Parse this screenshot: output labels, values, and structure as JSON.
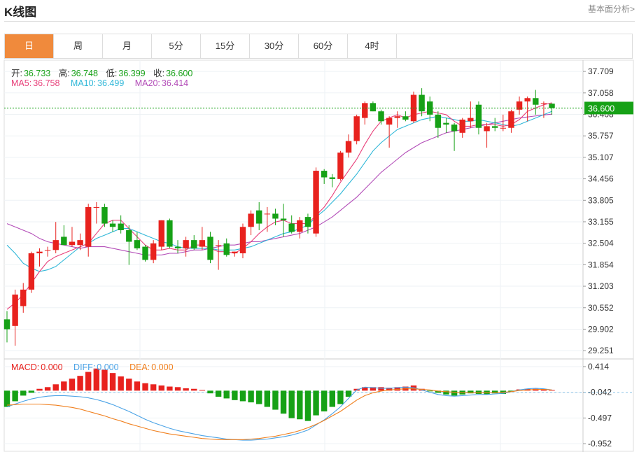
{
  "header": {
    "title": "K线图",
    "link": "基本面分析>"
  },
  "tabs": [
    "日",
    "周",
    "月",
    "5分",
    "15分",
    "30分",
    "60分",
    "4时"
  ],
  "active_tab": 0,
  "ohlc_info": {
    "open_label": "开:",
    "open": "36.733",
    "high_label": "高:",
    "high": "36.748",
    "low_label": "低:",
    "low": "36.399",
    "close_label": "收:",
    "close": "36.600"
  },
  "ma_info": {
    "ma5_label": "MA5:",
    "ma5": "36.758",
    "ma10_label": "MA10:",
    "ma10": "36.499",
    "ma20_label": "MA20:",
    "ma20": "36.414"
  },
  "macd_info": {
    "macd_label": "MACD:",
    "macd": "0.000",
    "diff_label": "DIFF:",
    "diff": "0.000",
    "dea_label": "DEA:",
    "dea": "0.000"
  },
  "colors": {
    "up": "#e8221e",
    "down": "#16a116",
    "ma5": "#e8407a",
    "ma10": "#2fb7d8",
    "ma20": "#b34db8",
    "diff": "#4ba3e6",
    "dea": "#f07f1d",
    "accent": "#f08a3c"
  },
  "chart_data": [
    {
      "type": "candlestick",
      "y_ticks": [
        "37.709",
        "37.058",
        "36.408",
        "35.757",
        "35.107",
        "34.456",
        "33.805",
        "33.155",
        "32.504",
        "31.854",
        "31.203",
        "30.552",
        "29.902",
        "29.251"
      ],
      "ylim": [
        29.0,
        38.05
      ],
      "last_price": "36.600",
      "ohlc": [
        [
          30.2,
          30.45,
          29.5,
          29.9
        ],
        [
          30.0,
          31.1,
          29.4,
          30.95
        ],
        [
          30.6,
          31.3,
          30.4,
          31.1
        ],
        [
          31.1,
          32.25,
          31.0,
          32.2
        ],
        [
          32.2,
          32.35,
          31.8,
          32.25
        ],
        [
          32.3,
          32.4,
          32.1,
          32.3
        ],
        [
          32.3,
          33.15,
          32.2,
          32.6
        ],
        [
          32.7,
          33.05,
          32.45,
          32.45
        ],
        [
          32.45,
          33.0,
          32.4,
          32.55
        ],
        [
          32.45,
          32.8,
          32.3,
          32.6
        ],
        [
          32.4,
          33.7,
          32.1,
          33.6
        ],
        [
          33.6,
          33.75,
          33.1,
          33.6
        ],
        [
          33.6,
          33.7,
          33.0,
          33.1
        ],
        [
          33.1,
          33.2,
          32.85,
          33.0
        ],
        [
          33.1,
          33.35,
          32.8,
          32.9
        ],
        [
          32.9,
          33.05,
          31.85,
          32.55
        ],
        [
          32.6,
          32.85,
          32.3,
          32.35
        ],
        [
          32.4,
          32.45,
          31.95,
          32.0
        ],
        [
          32.0,
          32.6,
          31.9,
          32.5
        ],
        [
          32.4,
          33.2,
          32.3,
          33.2
        ],
        [
          33.2,
          33.25,
          32.35,
          32.4
        ],
        [
          32.4,
          32.6,
          32.2,
          32.35
        ],
        [
          32.35,
          32.7,
          32.1,
          32.6
        ],
        [
          32.6,
          32.75,
          32.3,
          32.35
        ],
        [
          32.4,
          33.0,
          32.3,
          32.6
        ],
        [
          32.7,
          32.85,
          31.9,
          32.0
        ],
        [
          32.45,
          32.6,
          31.7,
          32.45
        ],
        [
          32.5,
          32.65,
          32.1,
          32.15
        ],
        [
          32.2,
          32.25,
          32.1,
          32.25
        ],
        [
          32.2,
          33.1,
          32.05,
          33.0
        ],
        [
          33.0,
          33.5,
          32.75,
          33.4
        ],
        [
          33.5,
          33.75,
          32.9,
          33.1
        ],
        [
          33.4,
          33.6,
          32.85,
          33.4
        ],
        [
          33.4,
          33.55,
          33.05,
          33.25
        ],
        [
          33.25,
          33.7,
          32.7,
          33.2
        ],
        [
          33.1,
          33.35,
          32.8,
          32.85
        ],
        [
          32.85,
          33.3,
          32.65,
          33.2
        ],
        [
          33.3,
          33.4,
          32.8,
          33.0
        ],
        [
          32.8,
          34.8,
          32.7,
          34.7
        ],
        [
          34.7,
          34.75,
          34.3,
          34.5
        ],
        [
          34.5,
          34.6,
          34.2,
          34.45
        ],
        [
          34.45,
          35.3,
          34.4,
          35.25
        ],
        [
          35.25,
          35.8,
          35.1,
          35.6
        ],
        [
          35.6,
          36.4,
          35.5,
          36.35
        ],
        [
          36.3,
          36.8,
          36.1,
          36.75
        ],
        [
          36.75,
          36.8,
          36.5,
          36.5
        ],
        [
          36.5,
          36.55,
          36.1,
          36.2
        ],
        [
          36.1,
          36.35,
          35.4,
          36.3
        ],
        [
          36.3,
          36.5,
          36.0,
          36.35
        ],
        [
          36.35,
          36.5,
          36.2,
          36.25
        ],
        [
          36.2,
          37.1,
          36.15,
          37.0
        ],
        [
          37.0,
          37.2,
          36.35,
          36.5
        ],
        [
          36.8,
          36.95,
          36.2,
          36.4
        ],
        [
          36.4,
          36.5,
          35.7,
          36.0
        ],
        [
          36.15,
          36.3,
          35.85,
          36.1
        ],
        [
          36.1,
          36.15,
          35.3,
          35.9
        ],
        [
          35.85,
          36.3,
          35.7,
          36.25
        ],
        [
          36.2,
          36.8,
          36.0,
          36.3
        ],
        [
          36.7,
          36.8,
          35.8,
          36.0
        ],
        [
          35.9,
          36.15,
          35.4,
          36.05
        ],
        [
          36.05,
          36.3,
          35.9,
          36.0
        ],
        [
          36.0,
          36.4,
          35.9,
          36.0
        ],
        [
          36.0,
          36.55,
          35.85,
          36.5
        ],
        [
          36.55,
          36.95,
          36.4,
          36.8
        ],
        [
          36.8,
          36.95,
          36.2,
          36.9
        ],
        [
          36.9,
          37.15,
          36.4,
          36.7
        ],
        [
          36.75,
          36.8,
          36.3,
          36.75
        ],
        [
          36.733,
          36.748,
          36.399,
          36.6
        ]
      ],
      "ma5": [
        30.5,
        30.7,
        30.95,
        31.3,
        31.65,
        31.95,
        32.1,
        32.2,
        32.3,
        32.4,
        32.5,
        32.8,
        33.1,
        33.2,
        33.2,
        32.95,
        32.7,
        32.45,
        32.3,
        32.3,
        32.35,
        32.3,
        32.3,
        32.45,
        32.45,
        32.35,
        32.25,
        32.25,
        32.2,
        32.35,
        32.55,
        32.8,
        33.0,
        33.15,
        33.2,
        33.1,
        33.1,
        33.1,
        33.35,
        33.6,
        33.95,
        34.35,
        34.7,
        35.05,
        35.5,
        35.9,
        36.2,
        36.3,
        36.4,
        36.3,
        36.4,
        36.45,
        36.5,
        36.45,
        36.4,
        36.2,
        36.05,
        36.05,
        36.1,
        36.1,
        36.1,
        36.05,
        36.1,
        36.25,
        36.5,
        36.6,
        36.7,
        36.76
      ],
      "ma10": [
        32.45,
        32.2,
        31.9,
        31.75,
        31.65,
        31.7,
        31.8,
        32.0,
        32.2,
        32.4,
        32.5,
        32.65,
        32.75,
        32.85,
        32.95,
        32.95,
        32.85,
        32.75,
        32.65,
        32.55,
        32.5,
        32.4,
        32.35,
        32.35,
        32.35,
        32.35,
        32.3,
        32.3,
        32.3,
        32.35,
        32.4,
        32.5,
        32.6,
        32.7,
        32.8,
        32.85,
        32.95,
        33.05,
        33.3,
        33.5,
        33.75,
        34.0,
        34.3,
        34.6,
        34.95,
        35.3,
        35.55,
        35.75,
        35.95,
        36.05,
        36.15,
        36.25,
        36.3,
        36.35,
        36.3,
        36.25,
        36.2,
        36.2,
        36.25,
        36.2,
        36.15,
        36.1,
        36.05,
        36.1,
        36.2,
        36.3,
        36.4,
        36.5
      ],
      "ma20": [
        33.1,
        33.0,
        32.9,
        32.8,
        32.65,
        32.55,
        32.5,
        32.45,
        32.4,
        32.35,
        32.4,
        32.4,
        32.4,
        32.35,
        32.3,
        32.25,
        32.2,
        32.15,
        32.15,
        32.15,
        32.2,
        32.2,
        32.25,
        32.3,
        32.3,
        32.35,
        32.4,
        32.45,
        32.45,
        32.5,
        32.55,
        32.55,
        32.6,
        32.65,
        32.7,
        32.75,
        32.8,
        32.9,
        33.0,
        33.15,
        33.3,
        33.5,
        33.7,
        33.9,
        34.15,
        34.4,
        34.65,
        34.85,
        35.05,
        35.25,
        35.4,
        35.55,
        35.65,
        35.75,
        35.85,
        35.9,
        35.95,
        36.0,
        36.05,
        36.1,
        36.15,
        36.2,
        36.25,
        36.3,
        36.33,
        36.36,
        36.39,
        36.414
      ]
    },
    {
      "type": "macd",
      "y_ticks": [
        "0.414",
        "-0.042",
        "-0.497",
        "-0.952"
      ],
      "ylim": [
        -1.1,
        0.55
      ],
      "hist": [
        -0.3,
        -0.2,
        -0.1,
        -0.05,
        0.02,
        0.05,
        0.1,
        0.15,
        0.2,
        0.25,
        0.32,
        0.38,
        0.36,
        0.3,
        0.24,
        0.2,
        0.15,
        0.12,
        0.1,
        0.08,
        0.06,
        0.05,
        0.03,
        0.02,
        0.0,
        -0.06,
        -0.12,
        -0.15,
        -0.18,
        -0.2,
        -0.22,
        -0.25,
        -0.3,
        -0.35,
        -0.42,
        -0.5,
        -0.52,
        -0.55,
        -0.45,
        -0.38,
        -0.3,
        -0.25,
        -0.12,
        0.02,
        0.05,
        0.05,
        0.05,
        0.04,
        0.05,
        0.06,
        0.08,
        0.02,
        -0.02,
        -0.05,
        -0.08,
        -0.1,
        -0.08,
        -0.06,
        -0.07,
        -0.08,
        -0.06,
        -0.07,
        -0.03,
        0.01,
        0.02,
        0.02,
        0.01,
        0.0
      ],
      "diff": [
        -0.3,
        -0.25,
        -0.2,
        -0.16,
        -0.13,
        -0.11,
        -0.1,
        -0.1,
        -0.11,
        -0.12,
        -0.14,
        -0.17,
        -0.21,
        -0.26,
        -0.32,
        -0.38,
        -0.45,
        -0.52,
        -0.58,
        -0.63,
        -0.68,
        -0.72,
        -0.75,
        -0.78,
        -0.81,
        -0.83,
        -0.85,
        -0.87,
        -0.88,
        -0.89,
        -0.89,
        -0.88,
        -0.87,
        -0.85,
        -0.83,
        -0.8,
        -0.76,
        -0.71,
        -0.62,
        -0.53,
        -0.42,
        -0.3,
        -0.15,
        0.0,
        0.05,
        0.04,
        0.03,
        0.03,
        0.04,
        0.05,
        0.04,
        0.0,
        -0.04,
        -0.08,
        -0.1,
        -0.11,
        -0.1,
        -0.09,
        -0.08,
        -0.08,
        -0.07,
        -0.06,
        -0.03,
        0.0,
        0.02,
        0.03,
        0.02,
        0.0
      ],
      "dea": [
        -0.27,
        -0.26,
        -0.25,
        -0.25,
        -0.25,
        -0.26,
        -0.27,
        -0.29,
        -0.31,
        -0.34,
        -0.38,
        -0.42,
        -0.46,
        -0.51,
        -0.55,
        -0.6,
        -0.64,
        -0.68,
        -0.72,
        -0.75,
        -0.78,
        -0.8,
        -0.82,
        -0.84,
        -0.86,
        -0.87,
        -0.88,
        -0.88,
        -0.88,
        -0.88,
        -0.87,
        -0.86,
        -0.84,
        -0.82,
        -0.79,
        -0.76,
        -0.72,
        -0.67,
        -0.61,
        -0.54,
        -0.46,
        -0.38,
        -0.28,
        -0.18,
        -0.1,
        -0.05,
        -0.02,
        0.0,
        0.01,
        0.02,
        0.02,
        0.01,
        0.0,
        -0.02,
        -0.03,
        -0.04,
        -0.05,
        -0.05,
        -0.05,
        -0.05,
        -0.05,
        -0.04,
        -0.03,
        -0.01,
        0.0,
        0.01,
        0.01,
        0.0
      ]
    }
  ]
}
